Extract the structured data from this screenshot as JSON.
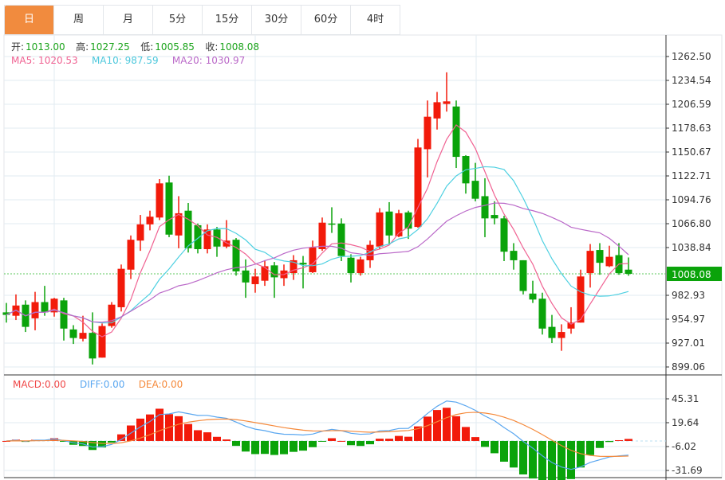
{
  "tabs": [
    {
      "label": "日",
      "active": true
    },
    {
      "label": "周",
      "active": false
    },
    {
      "label": "月",
      "active": false
    },
    {
      "label": "5分",
      "active": false
    },
    {
      "label": "15分",
      "active": false
    },
    {
      "label": "30分",
      "active": false
    },
    {
      "label": "60分",
      "active": false
    },
    {
      "label": "4时",
      "active": false
    }
  ],
  "ohlc_info": {
    "open_label": "开:",
    "open": "1013.00",
    "high_label": "高:",
    "high": "1027.25",
    "low_label": "低:",
    "low": "1005.85",
    "close_label": "收:",
    "close": "1008.08"
  },
  "ma_info": {
    "ma5": "MA5: 1020.53",
    "ma10": "MA10: 987.59",
    "ma20": "MA20: 1030.97"
  },
  "macd_info": {
    "macd": "MACD:0.00",
    "diff": "DIFF:0.00",
    "dea": "DEA:0.00"
  },
  "colors": {
    "up": "#f21a0a",
    "down": "#0aa30a",
    "ma5": "#f06292",
    "ma10": "#4dd0e1",
    "ma20": "#ba68c8",
    "diff": "#5aa7f0",
    "dea": "#f5893a",
    "active_tab": "#f18b3e",
    "last_price": "#0aa30a"
  },
  "chart_data": [
    {
      "type": "candlestick",
      "title": "",
      "ylim": [
        899.06,
        1262.5
      ],
      "y_ticks": [
        "1262.50",
        "1234.54",
        "1206.59",
        "1178.63",
        "1150.67",
        "1122.71",
        "1094.76",
        "1066.80",
        "1038.84",
        "1008.08",
        "982.93",
        "954.97",
        "927.01",
        "899.06"
      ],
      "tick_values": [
        1262.5,
        1234.54,
        1206.59,
        1178.63,
        1150.67,
        1122.71,
        1094.76,
        1066.8,
        1038.84,
        982.93,
        954.97,
        927.01,
        899.06
      ],
      "last_price": 1008.08,
      "last_price_label": "1008.08",
      "ma_periods": [
        5,
        10,
        20
      ],
      "ohlc": [
        [
          963,
          974,
          951,
          960
        ],
        [
          959,
          984,
          954,
          971
        ],
        [
          972,
          977,
          940,
          946
        ],
        [
          956,
          987,
          942,
          975
        ],
        [
          975,
          994,
          959,
          963
        ],
        [
          963,
          980,
          958,
          979
        ],
        [
          977,
          980,
          930,
          944
        ],
        [
          943,
          948,
          926,
          933
        ],
        [
          932,
          959,
          929,
          939
        ],
        [
          939,
          963,
          902,
          909
        ],
        [
          910,
          950,
          910,
          947
        ],
        [
          947,
          975,
          945,
          972
        ],
        [
          969,
          1019,
          964,
          1014
        ],
        [
          1013,
          1053,
          1002,
          1048
        ],
        [
          1047,
          1077,
          1035,
          1066
        ],
        [
          1066,
          1082,
          1059,
          1075
        ],
        [
          1074,
          1119,
          1071,
          1114
        ],
        [
          1115,
          1123,
          1051,
          1054
        ],
        [
          1053,
          1099,
          1038,
          1079
        ],
        [
          1082,
          1091,
          1033,
          1038
        ],
        [
          1065,
          1067,
          1032,
          1037
        ],
        [
          1037,
          1066,
          1032,
          1060
        ],
        [
          1060,
          1063,
          1028,
          1040
        ],
        [
          1040,
          1071,
          1038,
          1047
        ],
        [
          1048,
          1050,
          1006,
          1011
        ],
        [
          1012,
          1025,
          980,
          998
        ],
        [
          996,
          1014,
          986,
          1005
        ],
        [
          1000,
          1024,
          994,
          1017
        ],
        [
          1018,
          1022,
          980,
          1004
        ],
        [
          1003,
          1019,
          994,
          1012
        ],
        [
          1009,
          1030,
          1001,
          1024
        ],
        [
          1021,
          1029,
          991,
          1019
        ],
        [
          1010,
          1047,
          1009,
          1039
        ],
        [
          1037,
          1074,
          1035,
          1068
        ],
        [
          1067,
          1086,
          1056,
          1066
        ],
        [
          1067,
          1073,
          1023,
          1029
        ],
        [
          1027,
          1031,
          998,
          1009
        ],
        [
          1009,
          1028,
          1006,
          1025
        ],
        [
          1024,
          1047,
          1015,
          1042
        ],
        [
          1040,
          1085,
          1037,
          1080
        ],
        [
          1081,
          1092,
          1043,
          1053
        ],
        [
          1052,
          1083,
          1051,
          1079
        ],
        [
          1080,
          1082,
          1049,
          1061
        ],
        [
          1063,
          1166,
          1062,
          1156
        ],
        [
          1154,
          1211,
          1121,
          1192
        ],
        [
          1190,
          1221,
          1177,
          1209
        ],
        [
          1207,
          1244,
          1198,
          1210
        ],
        [
          1204,
          1211,
          1132,
          1145
        ],
        [
          1146,
          1147,
          1102,
          1114
        ],
        [
          1117,
          1138,
          1093,
          1096
        ],
        [
          1099,
          1120,
          1051,
          1073
        ],
        [
          1077,
          1093,
          1066,
          1073
        ],
        [
          1073,
          1076,
          1023,
          1034
        ],
        [
          1035,
          1044,
          1013,
          1024
        ],
        [
          1024,
          1024,
          984,
          988
        ],
        [
          985,
          1000,
          974,
          978
        ],
        [
          979,
          986,
          937,
          944
        ],
        [
          946,
          960,
          927,
          933
        ],
        [
          933,
          949,
          918,
          940
        ],
        [
          944,
          969,
          938,
          951
        ],
        [
          951,
          1013,
          951,
          1005
        ],
        [
          1009,
          1043,
          992,
          1035
        ],
        [
          1036,
          1044,
          1007,
          1021
        ],
        [
          1017,
          1041,
          1016,
          1028
        ],
        [
          1030,
          1044,
          1007,
          1009
        ],
        [
          1013.0,
          1027.25,
          1005.85,
          1008.08
        ]
      ]
    },
    {
      "type": "bar",
      "title": "MACD",
      "ylim": [
        -31.69,
        45.31
      ],
      "y_ticks": [
        "45.31",
        "19.64",
        "-6.02",
        "-31.69"
      ],
      "tick_values": [
        45.31,
        19.64,
        -6.02,
        -31.69
      ],
      "params": {
        "fast": 12,
        "slow": 26,
        "signal": 9
      }
    }
  ]
}
